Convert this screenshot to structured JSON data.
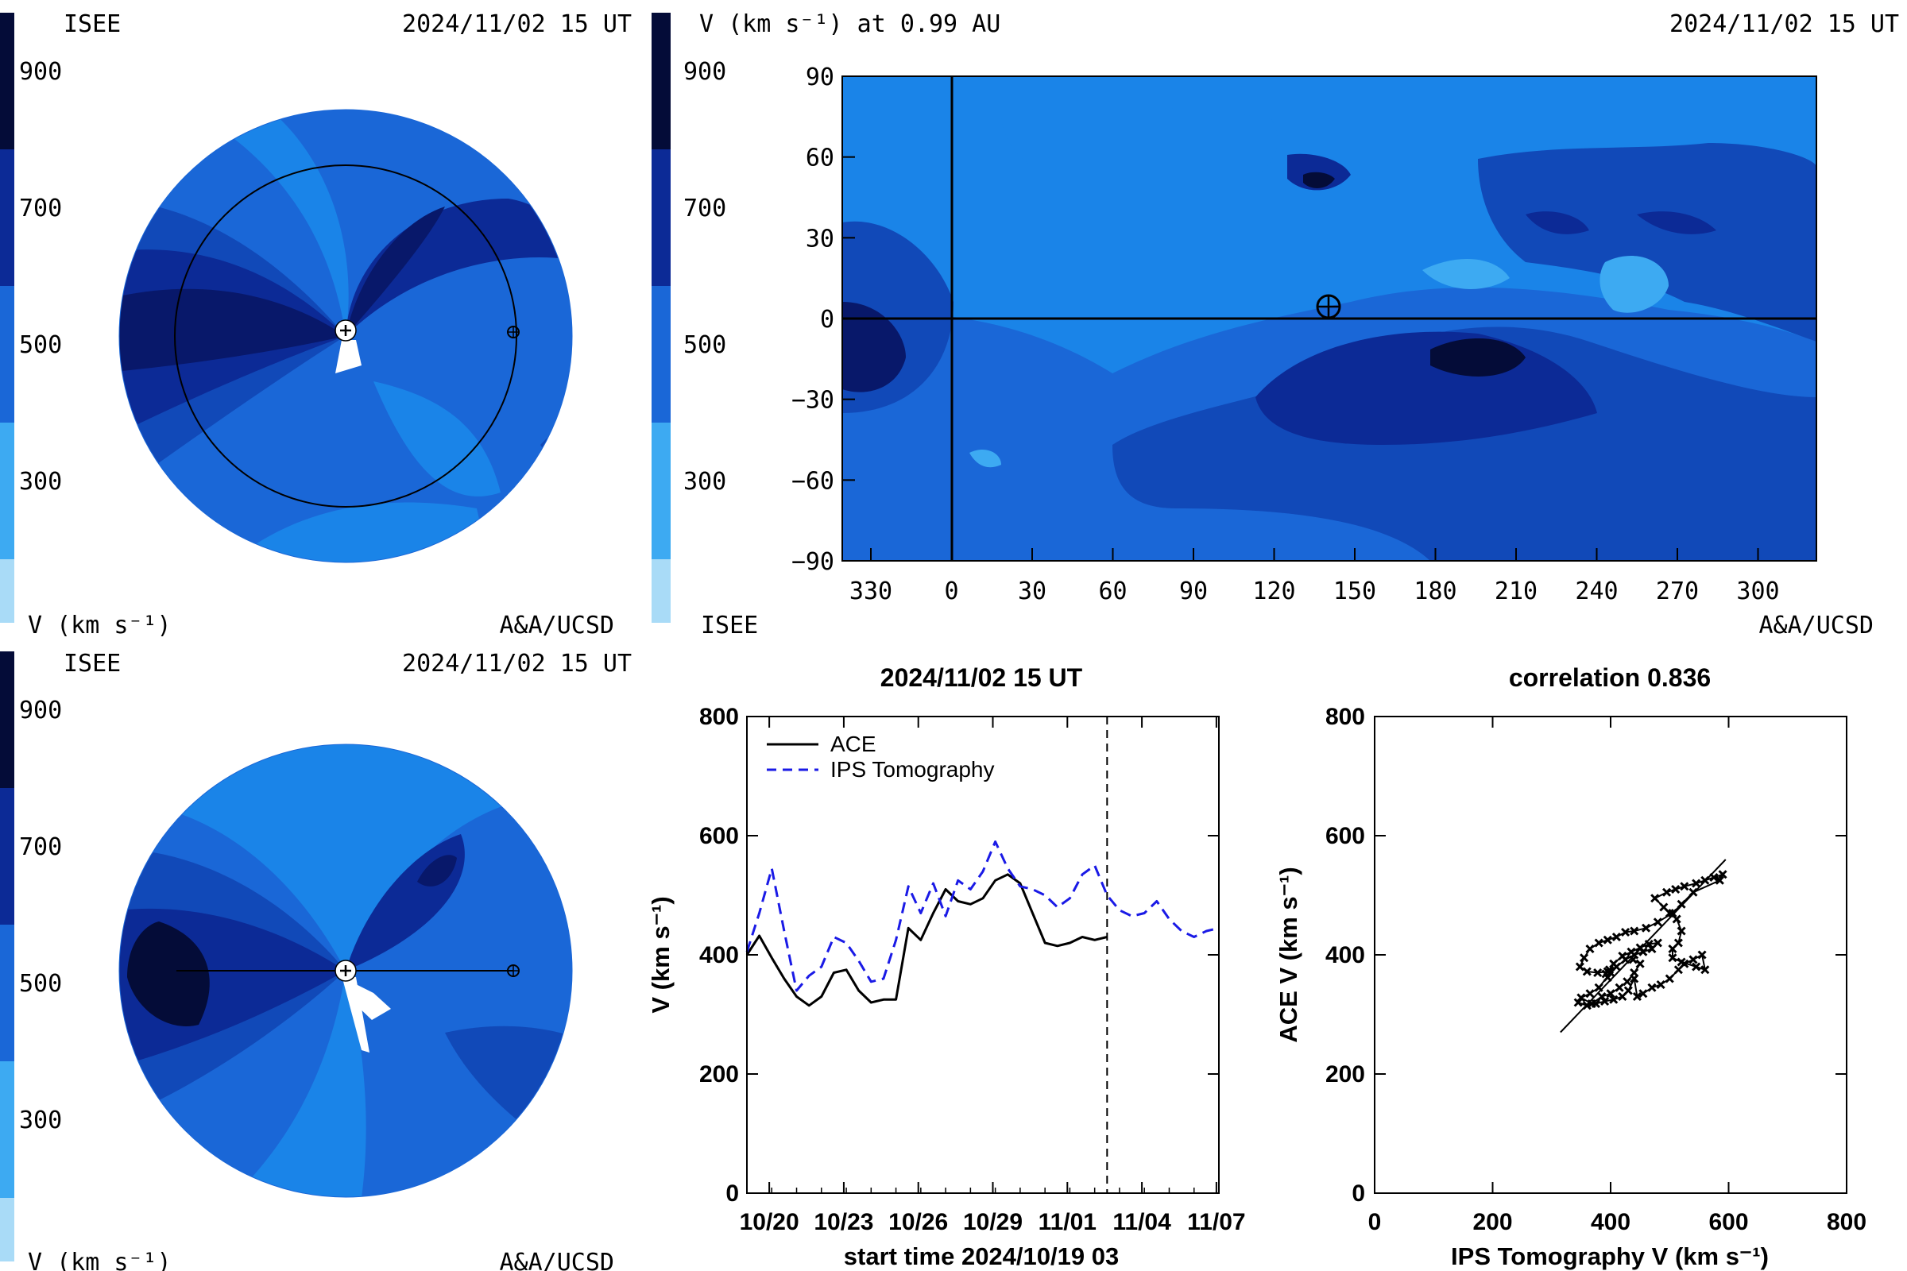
{
  "colors": {
    "v1": "#a9dbf7",
    "v2": "#3daaf2",
    "v3": "#1a84e8",
    "v4": "#1a67d7",
    "v5": "#1149b8",
    "v6": "#0c2a96",
    "v7": "#08186a",
    "v8": "#040c38",
    "ips_line": "#1a1ae6",
    "ace_line": "#000000"
  },
  "colorbar_ticks": [
    "900",
    "700",
    "500",
    "300"
  ],
  "panels": {
    "top_polar": {
      "left_title": "ISEE",
      "right_title": "2024/11/02 15 UT",
      "unit_label": "V (km s⁻¹)",
      "credit": "A&A/UCSD"
    },
    "bottom_polar": {
      "left_title": "ISEE",
      "right_title": "2024/11/02 15 UT",
      "unit_label": "V (km s⁻¹)",
      "credit": "A&A/UCSD"
    },
    "map": {
      "title": "V (km s⁻¹) at 0.99 AU",
      "date": "2024/11/02 15 UT",
      "bottom_left": "ISEE",
      "credit": "A&A/UCSD",
      "yticks": [
        "90",
        "60",
        "30",
        "0",
        "−30",
        "−60",
        "−90"
      ],
      "xticks": [
        "330",
        "0",
        "30",
        "60",
        "90",
        "120",
        "150",
        "180",
        "210",
        "240",
        "270",
        "300"
      ]
    }
  },
  "chart_data": [
    {
      "type": "line",
      "title": "2024/11/02 15 UT",
      "xlabel": "start time 2024/10/19 03",
      "ylabel": "V (km s⁻¹)",
      "ylim": [
        0,
        800
      ],
      "xlim": [
        0,
        19
      ],
      "yticks": [
        "0",
        "200",
        "400",
        "600",
        "800"
      ],
      "xticks": [
        "10/20",
        "10/23",
        "10/26",
        "10/29",
        "11/01",
        "11/04",
        "11/07"
      ],
      "xtick_days": [
        0.9,
        3.9,
        6.9,
        9.9,
        12.9,
        15.9,
        18.9
      ],
      "current_time_day": 14.5,
      "legend": "top-left",
      "series": [
        {
          "name": "ACE",
          "style": "solid",
          "x": [
            0,
            0.5,
            1,
            1.5,
            2,
            2.5,
            3,
            3.5,
            4,
            4.5,
            5,
            5.5,
            6,
            6.5,
            7,
            7.5,
            8,
            8.5,
            9,
            9.5,
            10,
            10.5,
            11,
            11.5,
            12,
            12.5,
            13,
            13.5,
            14,
            14.5
          ],
          "y": [
            400,
            432,
            395,
            360,
            330,
            315,
            330,
            370,
            375,
            340,
            320,
            325,
            325,
            445,
            425,
            470,
            510,
            490,
            485,
            495,
            525,
            535,
            520,
            470,
            420,
            415,
            420,
            430,
            425,
            430
          ]
        },
        {
          "name": "IPS Tomography",
          "style": "dashed",
          "x": [
            0,
            0.5,
            1,
            1.5,
            2,
            2.5,
            3,
            3.5,
            4,
            4.5,
            5,
            5.5,
            6,
            6.5,
            7,
            7.5,
            8,
            8.5,
            9,
            9.5,
            10,
            10.5,
            11,
            11.5,
            12,
            12.5,
            13,
            13.5,
            14,
            14.5,
            15,
            15.5,
            16,
            16.5,
            17,
            17.5,
            18,
            18.5,
            19
          ],
          "y": [
            405,
            470,
            545,
            440,
            340,
            365,
            380,
            430,
            420,
            390,
            355,
            360,
            425,
            515,
            470,
            520,
            465,
            525,
            510,
            540,
            590,
            545,
            515,
            510,
            500,
            480,
            495,
            535,
            550,
            500,
            475,
            465,
            470,
            490,
            460,
            440,
            430,
            440,
            445
          ]
        }
      ]
    },
    {
      "type": "scatter",
      "title": "correlation 0.836",
      "xlabel": "IPS Tomography V (km s⁻¹)",
      "ylabel": "ACE V (km s⁻¹)",
      "xlim": [
        0,
        800
      ],
      "ylim": [
        0,
        800
      ],
      "xticks": [
        "0",
        "200",
        "400",
        "600",
        "800"
      ],
      "yticks": [
        "0",
        "200",
        "400",
        "600",
        "800"
      ],
      "fit_line": {
        "x": [
          315,
          595
        ],
        "y": [
          270,
          560
        ]
      },
      "points": [
        [
          345,
          320
        ],
        [
          360,
          315
        ],
        [
          375,
          318
        ],
        [
          390,
          322
        ],
        [
          405,
          325
        ],
        [
          420,
          330
        ],
        [
          430,
          340
        ],
        [
          440,
          360
        ],
        [
          445,
          330
        ],
        [
          455,
          335
        ],
        [
          470,
          345
        ],
        [
          485,
          350
        ],
        [
          500,
          360
        ],
        [
          515,
          375
        ],
        [
          525,
          385
        ],
        [
          540,
          392
        ],
        [
          555,
          400
        ],
        [
          560,
          375
        ],
        [
          545,
          380
        ],
        [
          520,
          388
        ],
        [
          505,
          395
        ],
        [
          505,
          410
        ],
        [
          515,
          420
        ],
        [
          520,
          440
        ],
        [
          512,
          460
        ],
        [
          500,
          470
        ],
        [
          490,
          480
        ],
        [
          475,
          495
        ],
        [
          495,
          505
        ],
        [
          510,
          510
        ],
        [
          525,
          515
        ],
        [
          545,
          520
        ],
        [
          560,
          525
        ],
        [
          575,
          530
        ],
        [
          590,
          535
        ],
        [
          585,
          525
        ],
        [
          540,
          505
        ],
        [
          520,
          485
        ],
        [
          505,
          470
        ],
        [
          480,
          455
        ],
        [
          460,
          445
        ],
        [
          440,
          440
        ],
        [
          425,
          438
        ],
        [
          410,
          430
        ],
        [
          395,
          425
        ],
        [
          380,
          420
        ],
        [
          365,
          410
        ],
        [
          355,
          395
        ],
        [
          348,
          380
        ],
        [
          360,
          372
        ],
        [
          378,
          370
        ],
        [
          395,
          372
        ],
        [
          410,
          380
        ],
        [
          425,
          392
        ],
        [
          440,
          400
        ],
        [
          455,
          405
        ],
        [
          470,
          410
        ],
        [
          480,
          420
        ],
        [
          465,
          418
        ],
        [
          450,
          412
        ],
        [
          435,
          405
        ],
        [
          420,
          398
        ],
        [
          405,
          385
        ],
        [
          398,
          375
        ],
        [
          392,
          368
        ],
        [
          395,
          362
        ],
        [
          400,
          370
        ],
        [
          380,
          345
        ],
        [
          365,
          335
        ],
        [
          350,
          328
        ],
        [
          368,
          318
        ],
        [
          385,
          330
        ],
        [
          400,
          335
        ],
        [
          415,
          345
        ],
        [
          428,
          355
        ],
        [
          440,
          370
        ],
        [
          450,
          385
        ],
        [
          438,
          392
        ]
      ]
    }
  ]
}
